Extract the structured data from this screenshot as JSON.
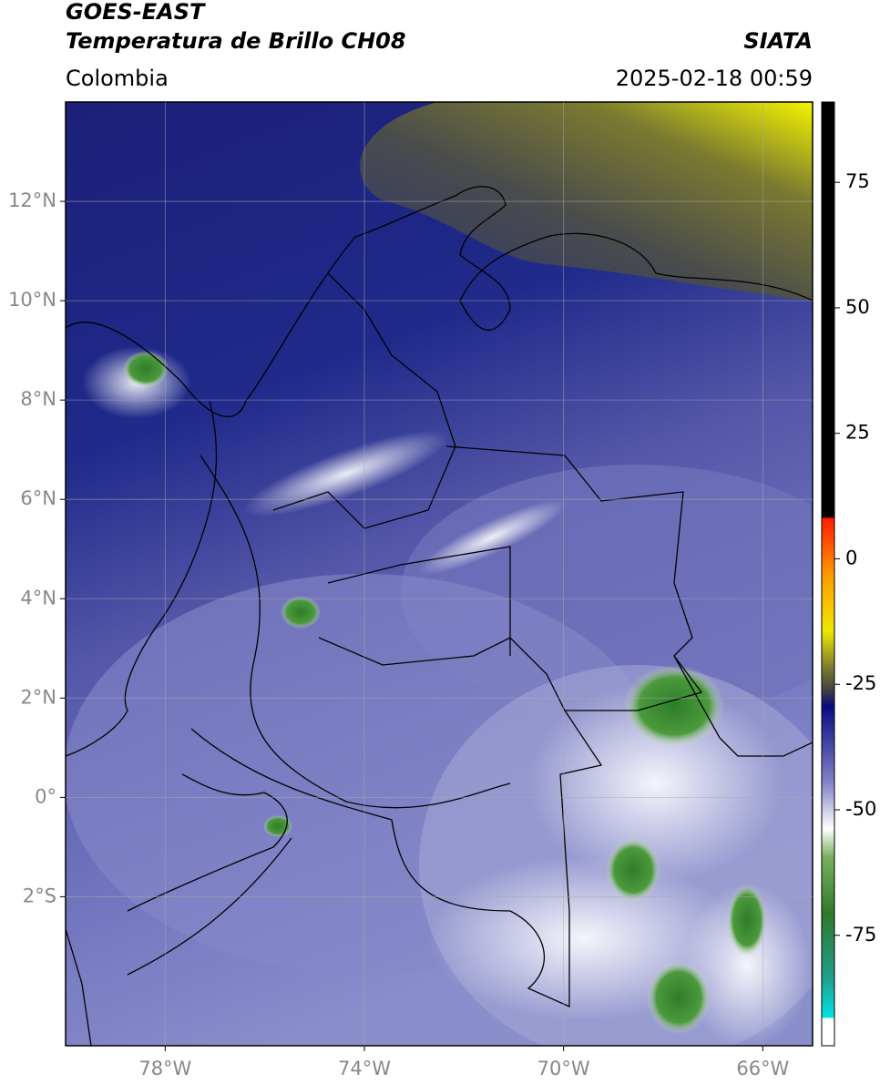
{
  "header": {
    "title": "GOES-EAST",
    "subtitle": "Temperatura de Brillo CH08",
    "source": "SIATA",
    "region": "Colombia",
    "datetime": "2025-02-18 00:59"
  },
  "map": {
    "lonlim": [
      -80,
      -65
    ],
    "latlim": [
      -5,
      14
    ],
    "lonticks": [
      {
        "value": -78,
        "label": "78°W"
      },
      {
        "value": -74,
        "label": "74°W"
      },
      {
        "value": -70,
        "label": "70°W"
      },
      {
        "value": -66,
        "label": "66°W"
      }
    ],
    "latticks": [
      {
        "value": 12,
        "label": "12°N"
      },
      {
        "value": 10,
        "label": "10°N"
      },
      {
        "value": 8,
        "label": "8°N"
      },
      {
        "value": 6,
        "label": "6°N"
      },
      {
        "value": 4,
        "label": "4°N"
      },
      {
        "value": 2,
        "label": "2°N"
      },
      {
        "value": 0,
        "label": "0°"
      },
      {
        "value": -2,
        "label": "2°S"
      }
    ],
    "grid": true
  },
  "colorbar": {
    "lim": [
      -97,
      91
    ],
    "ticks": [
      75,
      50,
      25,
      0,
      -25,
      -50,
      -75
    ]
  }
}
